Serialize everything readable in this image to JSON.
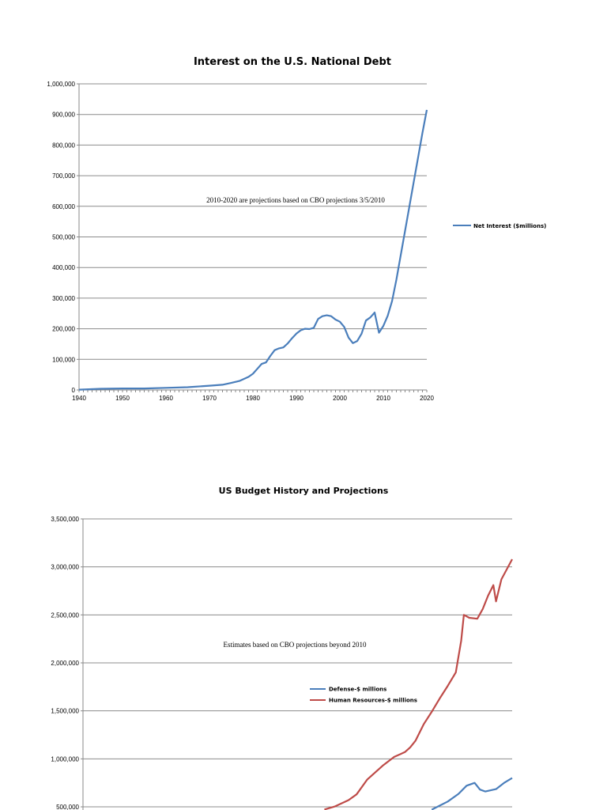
{
  "chart_data": [
    {
      "type": "line",
      "title": "Interest on the U.S. National Debt",
      "annotation": "2010-2020 are projections based on CBO projections 3/5/2010",
      "xlim": [
        1940,
        2020
      ],
      "ylim": [
        0,
        1000000
      ],
      "x_ticks": [
        "1940",
        "1950",
        "1960",
        "1970",
        "1980",
        "1990",
        "2000",
        "2010",
        "2020"
      ],
      "y_ticks": [
        "0",
        "100,000",
        "200,000",
        "300,000",
        "400,000",
        "500,000",
        "600,000",
        "700,000",
        "800,000",
        "900,000",
        "1,000,000"
      ],
      "grid": true,
      "legend_position": "right",
      "colors": {
        "Net Interest ($millions)": "#4a7ebb"
      },
      "series": [
        {
          "name": "Net Interest ($millions)",
          "x": [
            1940,
            1945,
            1950,
            1955,
            1960,
            1965,
            1970,
            1973,
            1975,
            1977,
            1979,
            1980,
            1981,
            1982,
            1983,
            1984,
            1985,
            1986,
            1987,
            1988,
            1989,
            1990,
            1991,
            1992,
            1993,
            1994,
            1995,
            1996,
            1997,
            1998,
            1999,
            2000,
            2001,
            2002,
            2003,
            2004,
            2005,
            2006,
            2007,
            2008,
            2009,
            2010,
            2011,
            2012,
            2013,
            2014,
            2015,
            2016,
            2017,
            2018,
            2019,
            2020
          ],
          "values": [
            1000,
            4000,
            5000,
            5000,
            7000,
            9000,
            14000,
            17000,
            23000,
            30000,
            43000,
            53000,
            69000,
            85000,
            90000,
            111000,
            130000,
            136000,
            139000,
            152000,
            169000,
            184000,
            195000,
            200000,
            199000,
            203000,
            232000,
            241000,
            244000,
            241000,
            230000,
            223000,
            206000,
            171000,
            153000,
            160000,
            184000,
            227000,
            237000,
            253000,
            187000,
            209000,
            242000,
            290000,
            360000,
            440000,
            520000,
            600000,
            680000,
            760000,
            840000,
            915000
          ]
        }
      ]
    },
    {
      "type": "line",
      "title": "US Budget History and Projections",
      "annotation": "Estimates based on CBO projections beyond 2010",
      "xlim": [
        1940,
        2020
      ],
      "ylim": [
        500000,
        3500000
      ],
      "y_ticks": [
        "500,000",
        "1,000,000",
        "1,500,000",
        "2,000,000",
        "2,500,000",
        "3,000,000",
        "3,500,000"
      ],
      "grid": true,
      "legend_position": "center",
      "colors": {
        "Defense-$ millions": "#4a7ebb",
        "Human Resources-$ millions": "#be4b48"
      },
      "series": [
        {
          "name": "Defense-$ millions",
          "x": [
            2005,
            2008,
            2010,
            2011.5,
            2013,
            2014,
            2015,
            2017,
            2018.5,
            2020
          ],
          "values": [
            470000,
            555000,
            635000,
            720000,
            750000,
            680000,
            660000,
            685000,
            750000,
            800000
          ]
        },
        {
          "name": "Human Resources-$ millions",
          "x": [
            1985,
            1987,
            1989.5,
            1991,
            1993,
            1994.5,
            1996,
            1998,
            2000,
            2001,
            2002,
            2003.5,
            2005,
            2006.5,
            2008,
            2009.5,
            2010.5,
            2011,
            2012,
            2013.5,
            2014.5,
            2015.5,
            2016.5,
            2017,
            2018,
            2020
          ],
          "values": [
            472000,
            505000,
            570000,
            630000,
            785000,
            860000,
            935000,
            1020000,
            1070000,
            1120000,
            1190000,
            1360000,
            1490000,
            1630000,
            1760000,
            1900000,
            2230000,
            2500000,
            2470000,
            2460000,
            2560000,
            2700000,
            2810000,
            2640000,
            2870000,
            3080000
          ]
        }
      ]
    }
  ]
}
